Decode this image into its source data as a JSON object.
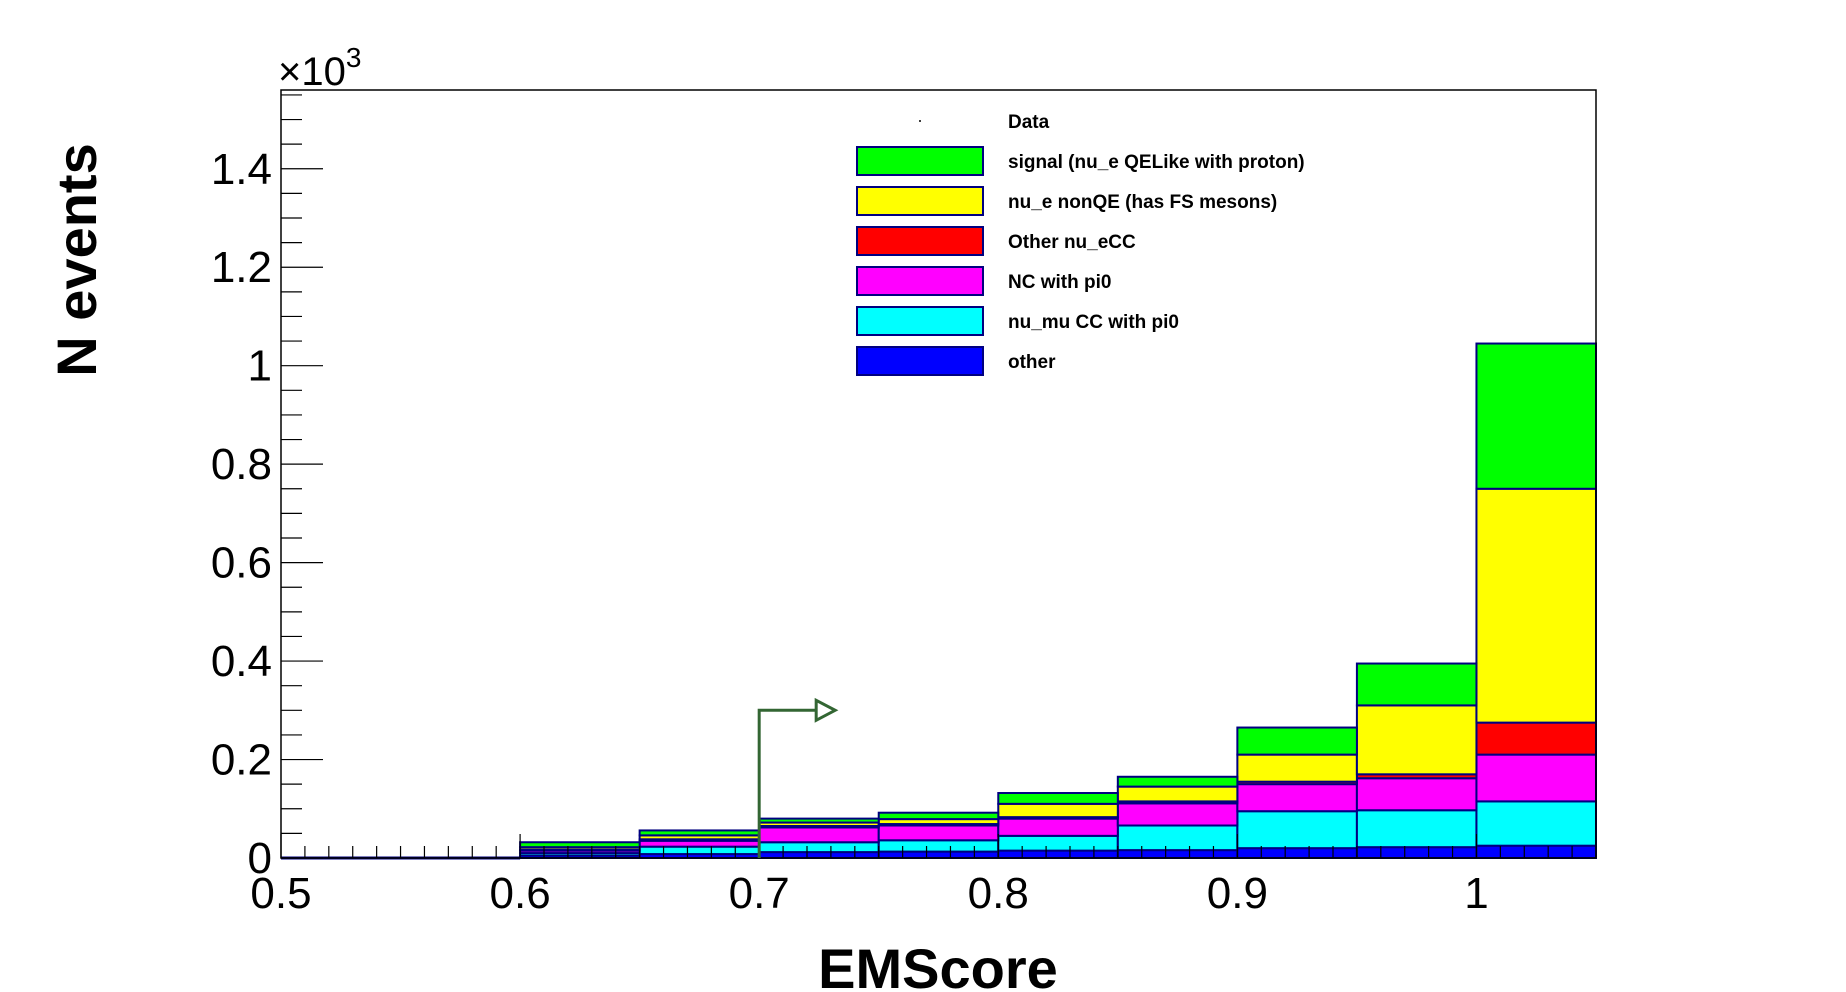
{
  "chart_data": {
    "type": "bar",
    "stacked": true,
    "title": "",
    "xlabel": "EMScore",
    "ylabel": "N events",
    "y_multiplier": "×10",
    "y_multiplier_exp": "3",
    "xlim": [
      0.5,
      1.05
    ],
    "ylim": [
      0,
      1.56
    ],
    "x_ticks": [
      0.5,
      0.6,
      0.7,
      0.8,
      0.9,
      1.0
    ],
    "x_tick_labels": [
      "0.5",
      "0.6",
      "0.7",
      "0.8",
      "0.9",
      "1"
    ],
    "y_ticks": [
      0,
      0.2,
      0.4,
      0.6,
      0.8,
      1.0,
      1.2,
      1.4
    ],
    "y_tick_labels": [
      "0",
      "0.2",
      "0.4",
      "0.6",
      "0.8",
      "1",
      "1.2",
      "1.4"
    ],
    "bin_edges": [
      0.5,
      0.55,
      0.6,
      0.65,
      0.7,
      0.75,
      0.8,
      0.85,
      0.9,
      0.95,
      1.0,
      1.05
    ],
    "series": [
      {
        "name": "other",
        "color": "#0000ff",
        "values": [
          0,
          0,
          0.005,
          0.008,
          0.012,
          0.013,
          0.015,
          0.016,
          0.02,
          0.022,
          0.025
        ]
      },
      {
        "name": "nu_mu CC with pi0",
        "color": "#00ffff",
        "values": [
          0,
          0,
          0.005,
          0.015,
          0.02,
          0.023,
          0.03,
          0.05,
          0.075,
          0.075,
          0.09
        ]
      },
      {
        "name": "NC with pi0",
        "color": "#ff00ff",
        "values": [
          0,
          0,
          0.005,
          0.012,
          0.03,
          0.03,
          0.035,
          0.045,
          0.055,
          0.065,
          0.095
        ]
      },
      {
        "name": "Other nu_eCC",
        "color": "#ff0000",
        "values": [
          0,
          0,
          0.002,
          0.003,
          0.003,
          0.003,
          0.003,
          0.004,
          0.005,
          0.008,
          0.065
        ]
      },
      {
        "name": "nu_e nonQE (has FS mesons)",
        "color": "#ffff00",
        "values": [
          0,
          0,
          0.005,
          0.008,
          0.007,
          0.01,
          0.027,
          0.03,
          0.055,
          0.14,
          0.475
        ]
      },
      {
        "name": "signal (nu_e QELike with proton)",
        "color": "#00ff00",
        "values": [
          0,
          0,
          0.01,
          0.01,
          0.008,
          0.013,
          0.022,
          0.02,
          0.055,
          0.085,
          0.295
        ]
      }
    ],
    "data_series": {
      "name": "Data",
      "values": []
    },
    "legend_order": [
      "Data",
      "signal (nu_e QELike with proton)",
      "nu_e nonQE (has FS mesons)",
      "Other nu_eCC",
      "NC with pi0",
      "nu_mu CC with pi0",
      "other"
    ],
    "legend": "top-right",
    "cut": {
      "value": 0.7,
      "direction": "right"
    },
    "grid": false
  }
}
